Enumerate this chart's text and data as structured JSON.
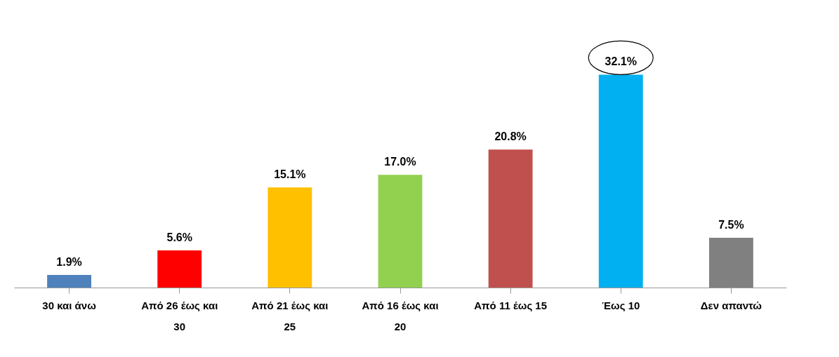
{
  "chart_data": {
    "type": "bar",
    "categories": [
      "30 και άνω",
      "Από 26 έως και 30",
      "Από 21 έως και 25",
      "Από 16 έως και 20",
      "Από 11 έως 15",
      "Έως 10",
      "Δεν απαντώ"
    ],
    "values": [
      1.9,
      5.6,
      15.1,
      17.0,
      20.8,
      32.1,
      7.5
    ],
    "colors": [
      "#4f81bd",
      "#ff0000",
      "#ffc000",
      "#92d050",
      "#c0504d",
      "#00b0f0",
      "#808080"
    ],
    "value_labels": [
      "1.9%",
      "5.6%",
      "15.1%",
      "17.0%",
      "20.8%",
      "32.1%",
      "7.5%"
    ],
    "grid": false
  }
}
